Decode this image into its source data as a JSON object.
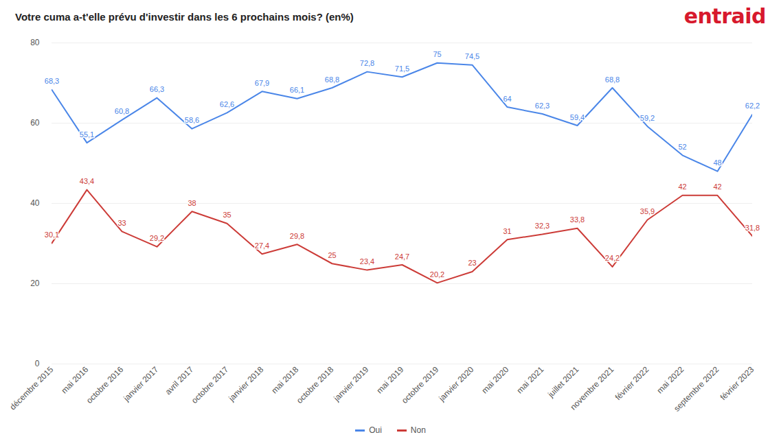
{
  "chart_data": {
    "type": "line",
    "title": "Votre cuma a-t'elle prévu d'investir dans les 6 prochains mois? (en%)",
    "annotations": [
      "entraid"
    ],
    "categories": [
      "décembre 2015",
      "mai 2016",
      "octobre 2016",
      "janvier 2017",
      "avril 2017",
      "octobre 2017",
      "janvier 2018",
      "mai 2018",
      "octobre 2018",
      "janvier 2019",
      "mai 2019",
      "octobre 2019",
      "janvier 2020",
      "mai 2020",
      "mai 2021",
      "juillet 2021",
      "novembre 2021",
      "février 2022",
      "mai 2022",
      "septembre 2022",
      "février 2023"
    ],
    "series": [
      {
        "name": "Oui",
        "color": "#4a86e8",
        "values": [
          68.3,
          55.1,
          60.8,
          66.3,
          58.6,
          62.6,
          67.9,
          66.1,
          68.8,
          72.8,
          71.5,
          75,
          74.5,
          64,
          62.3,
          59.4,
          68.8,
          59.2,
          52,
          48,
          62.2
        ],
        "value_labels": [
          "68,3",
          "55,1",
          "60,8",
          "66,3",
          "58,6",
          "62,6",
          "67,9",
          "66,1",
          "68,8",
          "72,8",
          "71,5",
          "75",
          "74,5",
          "64",
          "62,3",
          "59,4",
          "68,8",
          "59,2",
          "52",
          "48",
          "62,2"
        ]
      },
      {
        "name": "Non",
        "color": "#cc3b37",
        "values": [
          30.1,
          43.4,
          33,
          29.2,
          38,
          35,
          27.4,
          29.8,
          25,
          23.4,
          24.7,
          20.2,
          23,
          31,
          32.3,
          33.8,
          24.2,
          35.9,
          42,
          42,
          31.8
        ],
        "value_labels": [
          "30,1",
          "43,4",
          "33",
          "29,2",
          "38",
          "35",
          "27,4",
          "29,8",
          "25",
          "23,4",
          "24,7",
          "20,2",
          "23",
          "31",
          "32,3",
          "33,8",
          "24,2",
          "35,9",
          "42",
          "42",
          "31,8"
        ]
      }
    ],
    "ylim": [
      0,
      80
    ],
    "yticks": [
      0,
      20,
      40,
      60,
      80
    ],
    "grid": true,
    "data_labels": true,
    "legend": "bottom"
  }
}
